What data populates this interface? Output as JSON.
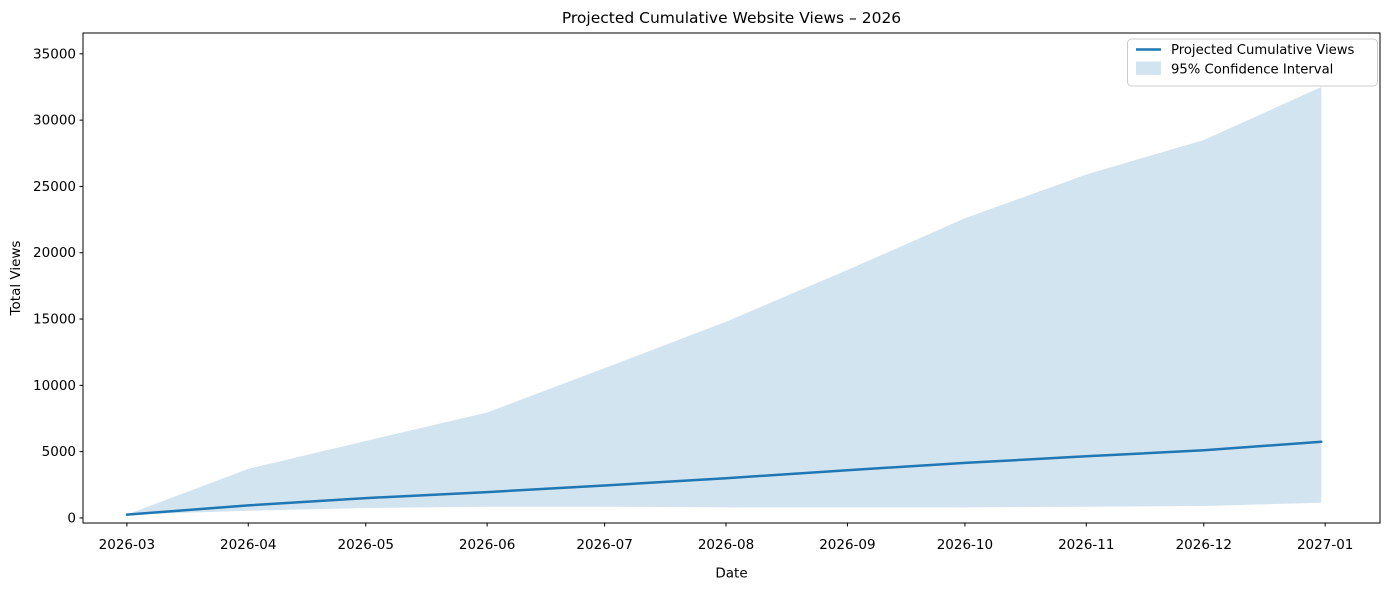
{
  "figure": {
    "background": "#ffffff"
  },
  "chart_data": {
    "type": "line",
    "title": "Projected Cumulative Website Views – 2026",
    "xlabel": "Date",
    "ylabel": "Total Views",
    "grid": false,
    "x": [
      "2026-03-01",
      "2026-04-01",
      "2026-05-01",
      "2026-06-01",
      "2026-07-01",
      "2026-08-01",
      "2026-09-01",
      "2026-10-01",
      "2026-11-01",
      "2026-12-01",
      "2026-12-31"
    ],
    "series": [
      {
        "name": "Projected Cumulative Views",
        "style": "line",
        "color": "#1f77b4",
        "line_width": 2.5,
        "values": [
          250,
          950,
          1500,
          1950,
          2450,
          3000,
          3600,
          4150,
          4650,
          5100,
          5750
        ]
      },
      {
        "name": "95% Confidence Interval",
        "style": "band",
        "color": "#1f77b4",
        "fill_opacity": 0.2,
        "lower": [
          250,
          550,
          750,
          850,
          850,
          800,
          800,
          800,
          850,
          900,
          1150
        ],
        "upper": [
          250,
          3700,
          5800,
          7950,
          11300,
          14800,
          18700,
          22600,
          25900,
          28500,
          32500
        ]
      }
    ],
    "x_tick_dates": [
      "2026-03-01",
      "2026-04-01",
      "2026-05-01",
      "2026-06-01",
      "2026-07-01",
      "2026-08-01",
      "2026-09-01",
      "2026-10-01",
      "2026-11-01",
      "2026-12-01",
      "2027-01-01"
    ],
    "x_tick_labels": [
      "2026-03",
      "2026-04",
      "2026-05",
      "2026-06",
      "2026-07",
      "2026-08",
      "2026-09",
      "2026-10",
      "2026-11",
      "2026-12",
      "2027-01"
    ],
    "y_ticks": [
      0,
      5000,
      10000,
      15000,
      20000,
      25000,
      30000,
      35000
    ],
    "y_tick_labels": [
      "0",
      "5000",
      "10000",
      "15000",
      "20000",
      "25000",
      "30000",
      "35000"
    ],
    "xlim_days": [
      -11.2,
      320.0
    ],
    "ylim": [
      -380,
      36570
    ],
    "legend": {
      "position": "upper right",
      "frame_color": "#cccccc",
      "frame_fill": "#ffffff"
    }
  }
}
